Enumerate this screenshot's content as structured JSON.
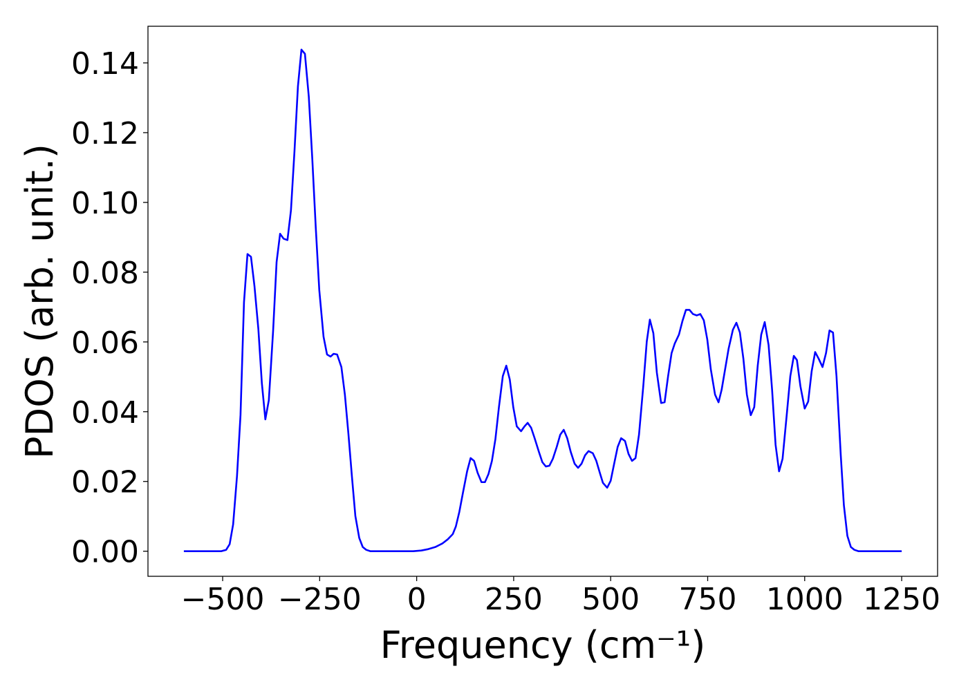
{
  "chart_data": {
    "type": "line",
    "xlabel": "Frequency (cm⁻¹)",
    "ylabel": "PDOS (arb. unit.)",
    "color": "#0000ff",
    "x": [
      -600,
      -504,
      -491,
      -482,
      -473,
      -463,
      -454,
      -445,
      -436,
      -427,
      -418,
      -408,
      -399,
      -390,
      -381,
      -370,
      -361,
      -352,
      -343,
      -333,
      -324,
      -315,
      -306,
      -297,
      -288,
      -278,
      -269,
      -260,
      -251,
      -240,
      -231,
      -222,
      -214,
      -205,
      -194,
      -185,
      -176,
      -167,
      -158,
      -148,
      -139,
      -130,
      -119,
      -9,
      12,
      30,
      48,
      66,
      80,
      93,
      101,
      110,
      119,
      130,
      139,
      148,
      157,
      167,
      176,
      185,
      194,
      203,
      212,
      222,
      231,
      240,
      249,
      258,
      269,
      278,
      286,
      295,
      304,
      315,
      324,
      333,
      342,
      351,
      361,
      370,
      379,
      388,
      397,
      407,
      416,
      425,
      434,
      443,
      454,
      463,
      472,
      480,
      491,
      500,
      509,
      518,
      527,
      537,
      546,
      555,
      564,
      573,
      584,
      593,
      601,
      610,
      619,
      630,
      639,
      648,
      657,
      665,
      676,
      685,
      694,
      703,
      712,
      722,
      731,
      740,
      749,
      758,
      769,
      778,
      786,
      795,
      804,
      815,
      824,
      833,
      842,
      851,
      861,
      870,
      879,
      888,
      897,
      907,
      916,
      925,
      934,
      943,
      954,
      963,
      972,
      980,
      989,
      1000,
      1009,
      1018,
      1027,
      1036,
      1046,
      1055,
      1064,
      1073,
      1082,
      1093,
      1101,
      1110,
      1119,
      1128,
      1139,
      1250
    ],
    "values": [
      0,
      0,
      0.0004,
      0.002,
      0.0077,
      0.0216,
      0.039,
      0.0714,
      0.0852,
      0.0844,
      0.076,
      0.0637,
      0.0482,
      0.0378,
      0.0433,
      0.0631,
      0.0829,
      0.091,
      0.0896,
      0.0892,
      0.0977,
      0.1145,
      0.1333,
      0.1438,
      0.1426,
      0.1303,
      0.1125,
      0.0927,
      0.0749,
      0.0615,
      0.0564,
      0.0558,
      0.0566,
      0.0564,
      0.0528,
      0.0449,
      0.0338,
      0.0216,
      0.0101,
      0.0038,
      0.0012,
      0.0004,
      0,
      0,
      0.0002,
      0.0006,
      0.0012,
      0.0022,
      0.0034,
      0.0049,
      0.0071,
      0.0113,
      0.0166,
      0.0229,
      0.0267,
      0.0259,
      0.0225,
      0.0198,
      0.0198,
      0.0221,
      0.0259,
      0.0322,
      0.0413,
      0.0502,
      0.0532,
      0.0492,
      0.0413,
      0.0358,
      0.0344,
      0.0358,
      0.0368,
      0.0354,
      0.0324,
      0.0285,
      0.0255,
      0.0243,
      0.0245,
      0.0265,
      0.0299,
      0.0334,
      0.0348,
      0.0324,
      0.0285,
      0.0251,
      0.0239,
      0.0251,
      0.0275,
      0.0287,
      0.0281,
      0.0259,
      0.0225,
      0.0196,
      0.0182,
      0.0202,
      0.0251,
      0.0299,
      0.0324,
      0.0316,
      0.0279,
      0.0259,
      0.0267,
      0.0334,
      0.0473,
      0.0601,
      0.0664,
      0.0625,
      0.0512,
      0.0425,
      0.0427,
      0.0502,
      0.0568,
      0.0595,
      0.0621,
      0.066,
      0.0692,
      0.0692,
      0.068,
      0.0676,
      0.068,
      0.0662,
      0.0607,
      0.0522,
      0.0449,
      0.0427,
      0.0463,
      0.0522,
      0.0581,
      0.0635,
      0.0655,
      0.0627,
      0.0552,
      0.0449,
      0.039,
      0.0413,
      0.0532,
      0.0621,
      0.0657,
      0.0591,
      0.0463,
      0.0305,
      0.0229,
      0.0265,
      0.0394,
      0.0502,
      0.056,
      0.0548,
      0.0473,
      0.0409,
      0.0429,
      0.0516,
      0.0571,
      0.0552,
      0.0528,
      0.0568,
      0.0633,
      0.0627,
      0.0502,
      0.0275,
      0.0132,
      0.0044,
      0.0012,
      0.0004,
      0,
      0
    ],
    "xlim": [
      -692.5,
      1342.5
    ],
    "xticks": [
      {
        "value": -500,
        "label": "−500"
      },
      {
        "value": -250,
        "label": "−250"
      },
      0,
      250,
      500,
      750,
      1000,
      1250
    ],
    "ylim": [
      -0.00719,
      0.1505
    ],
    "yticks": [
      {
        "value": 0,
        "label": "0.00"
      },
      {
        "value": 0.02,
        "label": "0.02"
      },
      {
        "value": 0.04,
        "label": "0.04"
      },
      {
        "value": 0.06,
        "label": "0.06"
      },
      {
        "value": 0.08,
        "label": "0.08"
      },
      {
        "value": 0.1,
        "label": "0.10"
      },
      {
        "value": 0.12,
        "label": "0.12"
      },
      {
        "value": 0.14,
        "label": "0.14"
      }
    ],
    "grid": false
  }
}
